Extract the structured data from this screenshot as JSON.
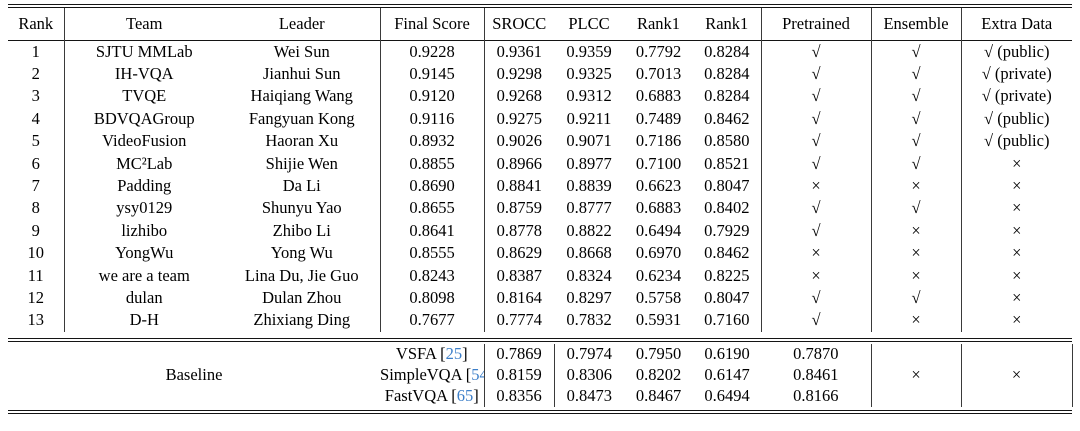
{
  "table": {
    "columns": [
      "Rank",
      "Team",
      "Leader",
      "Final Score",
      "SROCC",
      "PLCC",
      "Rank1",
      "Rank1",
      "Pretrained",
      "Ensemble",
      "Extra Data"
    ],
    "rows": [
      {
        "rank": "1",
        "team": "SJTU MMLab",
        "leader": "Wei Sun",
        "final": "0.9228",
        "srocc": "0.9361",
        "plcc": "0.9359",
        "rank1a": "0.7792",
        "rank1b": "0.8284",
        "pretrained": "√",
        "ensemble": "√",
        "extra": "√ (public)"
      },
      {
        "rank": "2",
        "team": "IH-VQA",
        "leader": "Jianhui Sun",
        "final": "0.9145",
        "srocc": "0.9298",
        "plcc": "0.9325",
        "rank1a": "0.7013",
        "rank1b": "0.8284",
        "pretrained": "√",
        "ensemble": "√",
        "extra": "√ (private)"
      },
      {
        "rank": "3",
        "team": "TVQE",
        "leader": "Haiqiang Wang",
        "final": "0.9120",
        "srocc": "0.9268",
        "plcc": "0.9312",
        "rank1a": "0.6883",
        "rank1b": "0.8284",
        "pretrained": "√",
        "ensemble": "√",
        "extra": "√ (private)"
      },
      {
        "rank": "4",
        "team": "BDVQAGroup",
        "leader": "Fangyuan Kong",
        "final": "0.9116",
        "srocc": "0.9275",
        "plcc": "0.9211",
        "rank1a": "0.7489",
        "rank1b": "0.8462",
        "pretrained": "√",
        "ensemble": "√",
        "extra": "√ (public)"
      },
      {
        "rank": "5",
        "team": "VideoFusion",
        "leader": "Haoran Xu",
        "final": "0.8932",
        "srocc": "0.9026",
        "plcc": "0.9071",
        "rank1a": "0.7186",
        "rank1b": "0.8580",
        "pretrained": "√",
        "ensemble": "√",
        "extra": "√ (public)"
      },
      {
        "rank": "6",
        "team": "MC²Lab",
        "leader": "Shijie Wen",
        "final": "0.8855",
        "srocc": "0.8966",
        "plcc": "0.8977",
        "rank1a": "0.7100",
        "rank1b": "0.8521",
        "pretrained": "√",
        "ensemble": "√",
        "extra": "×"
      },
      {
        "rank": "7",
        "team": "Padding",
        "leader": "Da Li",
        "final": "0.8690",
        "srocc": "0.8841",
        "plcc": "0.8839",
        "rank1a": "0.6623",
        "rank1b": "0.8047",
        "pretrained": "×",
        "ensemble": "×",
        "extra": "×"
      },
      {
        "rank": "8",
        "team": "ysy0129",
        "leader": "Shunyu Yao",
        "final": "0.8655",
        "srocc": "0.8759",
        "plcc": "0.8777",
        "rank1a": "0.6883",
        "rank1b": "0.8402",
        "pretrained": "√",
        "ensemble": "√",
        "extra": "×"
      },
      {
        "rank": "9",
        "team": "lizhibo",
        "leader": "Zhibo Li",
        "final": "0.8641",
        "srocc": "0.8778",
        "plcc": "0.8822",
        "rank1a": "0.6494",
        "rank1b": "0.7929",
        "pretrained": "√",
        "ensemble": "×",
        "extra": "×"
      },
      {
        "rank": "10",
        "team": "YongWu",
        "leader": "Yong Wu",
        "final": "0.8555",
        "srocc": "0.8629",
        "plcc": "0.8668",
        "rank1a": "0.6970",
        "rank1b": "0.8462",
        "pretrained": "×",
        "ensemble": "×",
        "extra": "×"
      },
      {
        "rank": "11",
        "team": "we are a team",
        "leader": "Lina Du, Jie Guo",
        "final": "0.8243",
        "srocc": "0.8387",
        "plcc": "0.8324",
        "rank1a": "0.6234",
        "rank1b": "0.8225",
        "pretrained": "×",
        "ensemble": "×",
        "extra": "×"
      },
      {
        "rank": "12",
        "team": "dulan",
        "leader": "Dulan Zhou",
        "final": "0.8098",
        "srocc": "0.8164",
        "plcc": "0.8297",
        "rank1a": "0.5758",
        "rank1b": "0.8047",
        "pretrained": "√",
        "ensemble": "√",
        "extra": "×"
      },
      {
        "rank": "13",
        "team": "D-H",
        "leader": "Zhixiang Ding",
        "final": "0.7677",
        "srocc": "0.7774",
        "plcc": "0.7832",
        "rank1a": "0.5931",
        "rank1b": "0.7160",
        "pretrained": "√",
        "ensemble": "×",
        "extra": "×"
      }
    ],
    "baseline": {
      "label": "Baseline",
      "rows": [
        {
          "prefix": "VSFA [",
          "cite": "25",
          "suffix": "]",
          "final": "0.7869",
          "srocc": "0.7974",
          "plcc": "0.7950",
          "rank1a": "0.6190",
          "rank1b": "0.7870"
        },
        {
          "prefix": "SimpleVQA [",
          "cite": "54",
          "suffix": "]",
          "final": "0.8159",
          "srocc": "0.8306",
          "plcc": "0.8202",
          "rank1a": "0.6147",
          "rank1b": "0.8461"
        },
        {
          "prefix": "FastVQA [",
          "cite": "65",
          "suffix": "]",
          "final": "0.8356",
          "srocc": "0.8473",
          "plcc": "0.8467",
          "rank1a": "0.6494",
          "rank1b": "0.8166"
        }
      ],
      "pretrained": "×",
      "ensemble": "×",
      "extra": "×"
    },
    "glyphs": {
      "check": "√",
      "cross": "×"
    },
    "colors": {
      "citation": "#3d7fc9",
      "rule": "#141414",
      "text": "#000000",
      "background": "#ffffff"
    }
  }
}
